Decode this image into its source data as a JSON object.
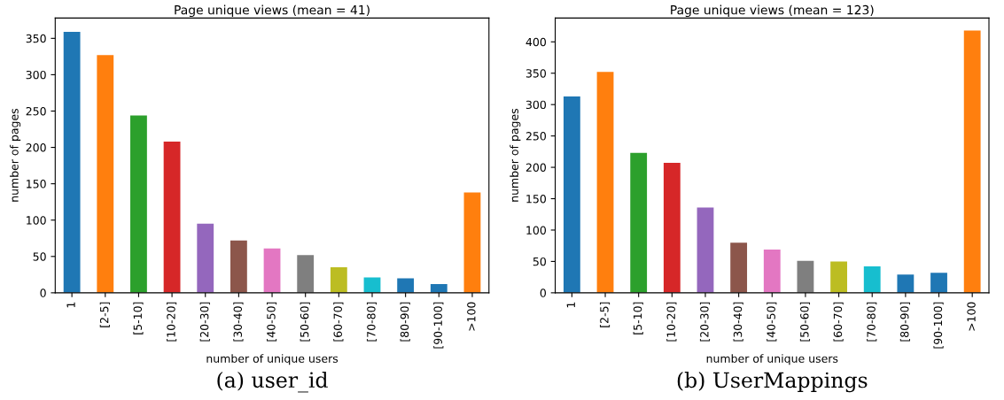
{
  "chart_data": [
    {
      "type": "bar",
      "title": "Page unique views (mean = 41)",
      "xlabel": "number of unique users",
      "ylabel": "number of pages",
      "categories": [
        "1",
        "[2-5]",
        "[5-10]",
        "[10-20]",
        "[20-30]",
        "[30-40]",
        "[40-50]",
        "[50-60]",
        "[60-70]",
        "[70-80]",
        "[80-90]",
        "[90-100]",
        ">100"
      ],
      "values": [
        359,
        327,
        244,
        208,
        95,
        72,
        61,
        52,
        35,
        21,
        20,
        12,
        138
      ],
      "colors": [
        "#1f77b4",
        "#ff7f0e",
        "#2ca02c",
        "#d62728",
        "#9467bd",
        "#8c564b",
        "#e377c2",
        "#7f7f7f",
        "#bcbd22",
        "#17becf",
        "#1f77b4",
        "#1f77b4",
        "#ff7f0e"
      ],
      "ylim": [
        0,
        378
      ],
      "yticks": [
        0,
        50,
        100,
        150,
        200,
        250,
        300,
        350
      ],
      "grid": false,
      "legend": false,
      "annotations": [
        "(a) user_id"
      ]
    },
    {
      "type": "bar",
      "title": "Page unique views (mean = 123)",
      "xlabel": "number of unique users",
      "ylabel": "number of pages",
      "categories": [
        "1",
        "[2-5]",
        "[5-10]",
        "[10-20]",
        "[20-30]",
        "[30-40]",
        "[40-50]",
        "[50-60]",
        "[60-70]",
        "[70-80]",
        "[80-90]",
        "[90-100]",
        ">100"
      ],
      "values": [
        313,
        352,
        223,
        207,
        136,
        80,
        69,
        51,
        50,
        42,
        29,
        32,
        418
      ],
      "colors": [
        "#1f77b4",
        "#ff7f0e",
        "#2ca02c",
        "#d62728",
        "#9467bd",
        "#8c564b",
        "#e377c2",
        "#7f7f7f",
        "#bcbd22",
        "#17becf",
        "#1f77b4",
        "#1f77b4",
        "#ff7f0e"
      ],
      "ylim": [
        0,
        438
      ],
      "yticks": [
        0,
        50,
        100,
        150,
        200,
        250,
        300,
        350,
        400
      ],
      "grid": false,
      "legend": false,
      "annotations": [
        "(b) UserMappings"
      ]
    }
  ]
}
